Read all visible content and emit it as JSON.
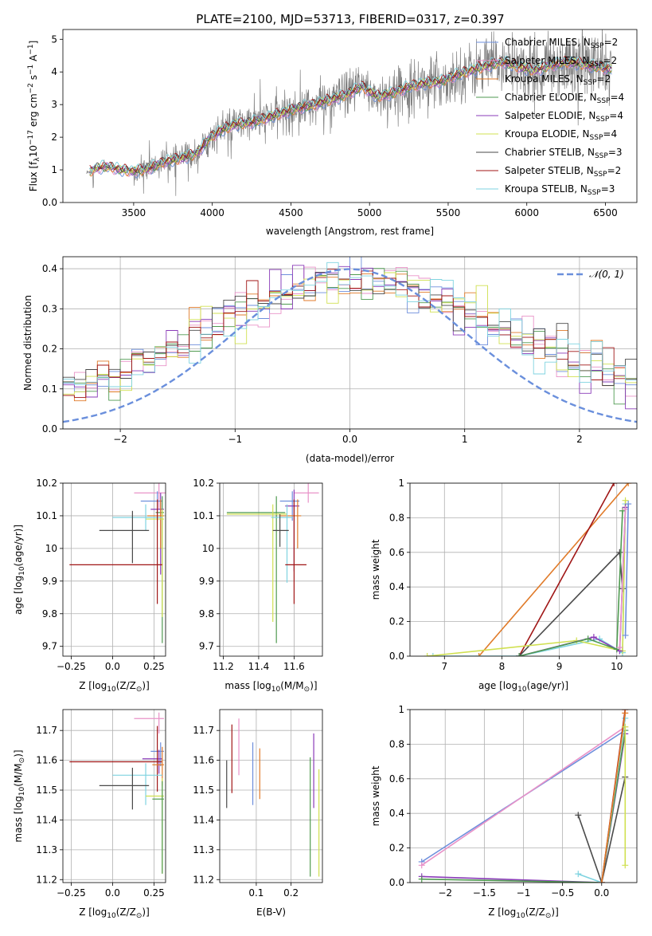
{
  "figure": {
    "title": "PLATE=2100, MJD=53713, FIBERID=0317, z=0.397"
  },
  "chart_data": [
    {
      "id": "spectrum",
      "type": "line",
      "xlabel": "wavelength [Angstrom, rest frame]",
      "ylabel_parts": [
        "Flux [f",
        "λ",
        "10",
        "−17",
        " erg cm",
        "−2",
        " s",
        "−1",
        " A",
        "−1",
        "]"
      ],
      "xlim": [
        3050,
        6700
      ],
      "ylim": [
        0,
        5.3
      ],
      "xticks": [
        3500,
        4000,
        4500,
        5000,
        5500,
        6000,
        6500
      ],
      "yticks": [
        0,
        1,
        2,
        3,
        4,
        5
      ],
      "grid": false,
      "legend_position": "right",
      "continuum_knots": {
        "x": [
          3200,
          3260,
          3330,
          3420,
          3500,
          3600,
          3700,
          3800,
          3900,
          3980,
          4050,
          4150,
          4250,
          4350,
          4450,
          4550,
          4650,
          4750,
          4850,
          4950,
          5050,
          5150,
          5250,
          5350,
          5450,
          5550,
          5650,
          5750,
          5850,
          5950,
          6050,
          6150,
          6250,
          6350,
          6450,
          6530
        ],
        "y": [
          0.9,
          1.05,
          1.1,
          1.0,
          0.95,
          1.05,
          1.25,
          1.35,
          1.5,
          1.95,
          2.2,
          2.4,
          2.45,
          2.6,
          2.75,
          2.9,
          3.0,
          3.15,
          3.3,
          3.55,
          3.25,
          3.35,
          3.55,
          3.65,
          3.7,
          3.9,
          4.05,
          4.2,
          4.3,
          4.15,
          4.05,
          4.2,
          4.3,
          4.25,
          4.15,
          4.1
        ]
      },
      "series": [
        {
          "name": "Chabrier MILES, N",
          "sub": "SSP",
          "suffix": "=2",
          "color": "#6e8fdc"
        },
        {
          "name": "Salpeter MILES, N",
          "sub": "SSP",
          "suffix": "=2",
          "color": "#e992c8"
        },
        {
          "name": "Kroupa MILES, N",
          "sub": "SSP",
          "suffix": "=2",
          "color": "#e07a28"
        },
        {
          "name": "Chabrier ELODIE, N",
          "sub": "SSP",
          "suffix": "=4",
          "color": "#4f9a50"
        },
        {
          "name": "Salpeter ELODIE, N",
          "sub": "SSP",
          "suffix": "=4",
          "color": "#8a3bb8"
        },
        {
          "name": "Kroupa ELODIE, N",
          "sub": "SSP",
          "suffix": "=4",
          "color": "#d0e050"
        },
        {
          "name": "Chabrier STELIB, N",
          "sub": "SSP",
          "suffix": "=3",
          "color": "#4a4a4a"
        },
        {
          "name": "Salpeter STELIB, N",
          "sub": "SSP",
          "suffix": "=2",
          "color": "#a01616"
        },
        {
          "name": "Kroupa STELIB, N",
          "sub": "SSP",
          "suffix": "=3",
          "color": "#7fd3e0"
        }
      ]
    },
    {
      "id": "residuals",
      "type": "histogram",
      "xlabel": "(data-model)/error",
      "ylabel": "Normed distribution",
      "xlim": [
        -2.5,
        2.5
      ],
      "ylim": [
        0,
        0.43
      ],
      "xticks": [
        -2,
        -1,
        0,
        1,
        2
      ],
      "yticks": [
        0.0,
        0.1,
        0.2,
        0.3,
        0.4
      ],
      "grid": true,
      "bins": 50,
      "legend_position": "top-right",
      "reference": {
        "label": "𝒩(0, 1)",
        "mean": 0,
        "sigma": 1,
        "color": "#6a8fdc"
      }
    },
    {
      "id": "age-vs-Z",
      "type": "scatter",
      "xlabel_parts": [
        "Z [log",
        "10",
        "(Z/Z",
        "⊙",
        ")]"
      ],
      "ylabel_parts": [
        "age  [log",
        "10",
        "(age/yr)]"
      ],
      "xlim": [
        -0.3,
        0.32
      ],
      "ylim": [
        9.67,
        10.2
      ],
      "xticks": [
        -0.25,
        0.0,
        0.25
      ],
      "yticks": [
        9.7,
        9.8,
        9.9,
        10.0,
        10.1,
        10.2
      ],
      "grid": true,
      "points": [
        {
          "x": 0.28,
          "xerr": [
            0.15,
            0.04
          ],
          "y": 10.17,
          "yerr": [
            0.05,
            0.03
          ],
          "color": "#e992c8"
        },
        {
          "x": 0.27,
          "xerr": [
            0.1,
            0.03
          ],
          "y": 10.145,
          "yerr": [
            0.06,
            0.03
          ],
          "color": "#6e8fdc"
        },
        {
          "x": 0.29,
          "xerr": [
            0.06,
            0.02
          ],
          "y": 10.12,
          "yerr": [
            0.2,
            0.05
          ],
          "color": "#8a3bb8"
        },
        {
          "x": 0.3,
          "xerr": [
            0.04,
            0.01
          ],
          "y": 10.11,
          "yerr": [
            0.4,
            0.05
          ],
          "color": "#4f9a50"
        },
        {
          "x": 0.29,
          "xerr": [
            0.08,
            0.02
          ],
          "y": 10.1,
          "yerr": [
            0.1,
            0.05
          ],
          "color": "#e07a28"
        },
        {
          "x": 0.3,
          "xerr": [
            0.1,
            0.01
          ],
          "y": 10.09,
          "yerr": [
            0.3,
            0.03
          ],
          "color": "#d0e050"
        },
        {
          "x": 0.2,
          "xerr": [
            0.2,
            0.1
          ],
          "y": 10.095,
          "yerr": [
            0.04,
            0.04
          ],
          "color": "#7fd3e0"
        },
        {
          "x": 0.12,
          "xerr": [
            0.2,
            0.1
          ],
          "y": 10.055,
          "yerr": [
            0.1,
            0.06
          ],
          "color": "#4a4a4a"
        },
        {
          "x": 0.27,
          "xerr": [
            0.53,
            0.03
          ],
          "y": 9.95,
          "yerr": [
            0.12,
            0.2
          ],
          "color": "#a01616"
        }
      ]
    },
    {
      "id": "age-vs-mass",
      "type": "scatter",
      "xlabel_parts": [
        "mass [log",
        "10",
        "(M/M",
        "⊙",
        ")]"
      ],
      "ylabel": "",
      "xlim": [
        11.18,
        11.76
      ],
      "ylim": [
        9.67,
        10.2
      ],
      "xticks": [
        11.2,
        11.4,
        11.6
      ],
      "yticks": [
        9.7,
        9.8,
        9.9,
        10.0,
        10.1,
        10.2
      ],
      "grid": true,
      "points": [
        {
          "x": 11.68,
          "xerr": [
            0.08,
            0.06
          ],
          "y": 10.17,
          "yerr": [
            0.03,
            0.1
          ],
          "color": "#e992c8"
        },
        {
          "x": 11.59,
          "xerr": [
            0.07,
            0.04
          ],
          "y": 10.145,
          "yerr": [
            0.06,
            0.03
          ],
          "color": "#6e8fdc"
        },
        {
          "x": 11.6,
          "xerr": [
            0.05,
            0.03
          ],
          "y": 10.13,
          "yerr": [
            0.2,
            0.05
          ],
          "color": "#8a3bb8"
        },
        {
          "x": 11.5,
          "xerr": [
            0.28,
            0.05
          ],
          "y": 10.11,
          "yerr": [
            0.4,
            0.05
          ],
          "color": "#4f9a50"
        },
        {
          "x": 11.62,
          "xerr": [
            0.1,
            0.02
          ],
          "y": 10.1,
          "yerr": [
            0.1,
            0.05
          ],
          "color": "#e07a28"
        },
        {
          "x": 11.48,
          "xerr": [
            0.26,
            0.08
          ],
          "y": 10.105,
          "yerr": [
            0.33,
            0.03
          ],
          "color": "#d0e050"
        },
        {
          "x": 11.56,
          "xerr": [
            0.09,
            0.03
          ],
          "y": 10.095,
          "yerr": [
            0.2,
            0.04
          ],
          "color": "#7fd3e0"
        },
        {
          "x": 11.52,
          "xerr": [
            0.04,
            0.05
          ],
          "y": 10.055,
          "yerr": [
            0.05,
            0.05
          ],
          "color": "#4a4a4a"
        },
        {
          "x": 11.6,
          "xerr": [
            0.05,
            0.07
          ],
          "y": 9.95,
          "yerr": [
            0.12,
            0.2
          ],
          "color": "#a01616"
        }
      ]
    },
    {
      "id": "weight-vs-age",
      "type": "line",
      "xlabel_parts": [
        "age  [log",
        "10",
        "(age/yr)]"
      ],
      "ylabel": "mass weight",
      "xlim": [
        6.4,
        10.35
      ],
      "ylim": [
        0,
        1
      ],
      "xticks": [
        7,
        8,
        9,
        10
      ],
      "yticks": [
        0.0,
        0.2,
        0.4,
        0.6,
        0.8,
        1.0
      ],
      "grid": true,
      "series": [
        {
          "color": "#e07a28",
          "x": [
            7.6,
            10.2
          ],
          "y": [
            0.0,
            1.0
          ]
        },
        {
          "color": "#a01616",
          "x": [
            8.3,
            9.95
          ],
          "y": [
            0.0,
            1.0
          ]
        },
        {
          "color": "#4a4a4a",
          "x": [
            8.3,
            10.05,
            10.1
          ],
          "y": [
            0.0,
            0.6,
            0.39
          ]
        },
        {
          "color": "#7fd3e0",
          "x": [
            6.8,
            8.3,
            9.7,
            10.1,
            10.15
          ],
          "y": [
            0.0,
            0.0,
            0.1,
            0.02,
            0.88
          ]
        },
        {
          "color": "#d0e050",
          "x": [
            6.7,
            9.3,
            10.1,
            10.15
          ],
          "y": [
            0.0,
            0.09,
            0.03,
            0.9
          ]
        },
        {
          "color": "#8a3bb8",
          "x": [
            8.3,
            9.6,
            10.05,
            10.15
          ],
          "y": [
            0.0,
            0.11,
            0.03,
            0.86
          ]
        },
        {
          "color": "#4f9a50",
          "x": [
            8.3,
            9.5,
            10.0,
            10.1
          ],
          "y": [
            0.0,
            0.1,
            0.04,
            0.84
          ]
        },
        {
          "color": "#e992c8",
          "x": [
            10.05,
            10.15
          ],
          "y": [
            0.05,
            0.85
          ]
        },
        {
          "color": "#6e8fdc",
          "x": [
            10.15,
            10.2
          ],
          "y": [
            0.12,
            0.88
          ]
        }
      ]
    },
    {
      "id": "mass-vs-Z",
      "type": "scatter",
      "xlabel_parts": [
        "Z [log",
        "10",
        "(Z/Z",
        "⊙",
        ")]"
      ],
      "ylabel_parts": [
        "mass [log",
        "10",
        "(M/M",
        "⊙",
        ")]"
      ],
      "xlim": [
        -0.3,
        0.32
      ],
      "ylim": [
        11.19,
        11.77
      ],
      "xticks": [
        -0.25,
        0.0,
        0.25
      ],
      "yticks": [
        11.2,
        11.3,
        11.4,
        11.5,
        11.6,
        11.7
      ],
      "grid": true,
      "points": [
        {
          "x": 0.28,
          "xerr": [
            0.15,
            0.03
          ],
          "y": 11.74,
          "yerr": [
            0.05,
            0.02
          ],
          "color": "#e992c8"
        },
        {
          "x": 0.29,
          "xerr": [
            0.06,
            0.02
          ],
          "y": 11.63,
          "yerr": [
            0.05,
            0.03
          ],
          "color": "#6e8fdc"
        },
        {
          "x": 0.28,
          "xerr": [
            0.1,
            0.02
          ],
          "y": 11.605,
          "yerr": [
            0.05,
            0.03
          ],
          "color": "#8a3bb8"
        },
        {
          "x": 0.27,
          "xerr": [
            0.53,
            0.03
          ],
          "y": 11.595,
          "yerr": [
            0.1,
            0.12
          ],
          "color": "#a01616"
        },
        {
          "x": 0.3,
          "xerr": [
            0.06,
            0.01
          ],
          "y": 11.585,
          "yerr": [
            0.07,
            0.06
          ],
          "color": "#e07a28"
        },
        {
          "x": 0.2,
          "xerr": [
            0.2,
            0.1
          ],
          "y": 11.55,
          "yerr": [
            0.1,
            0.04
          ],
          "color": "#7fd3e0"
        },
        {
          "x": 0.12,
          "xerr": [
            0.2,
            0.1
          ],
          "y": 11.515,
          "yerr": [
            0.08,
            0.06
          ],
          "color": "#4a4a4a"
        },
        {
          "x": 0.3,
          "xerr": [
            0.1,
            0.01
          ],
          "y": 11.48,
          "yerr": [
            0.26,
            0.06
          ],
          "color": "#d0e050"
        },
        {
          "x": 0.3,
          "xerr": [
            0.06,
            0.01
          ],
          "y": 11.47,
          "yerr": [
            0.25,
            0.06
          ],
          "color": "#4f9a50"
        }
      ]
    },
    {
      "id": "mass-vs-ebv",
      "type": "errorbar",
      "xlabel": "E(B-V)",
      "ylabel": "",
      "xlim": [
        -0.005,
        0.29
      ],
      "ylim": [
        11.19,
        11.77
      ],
      "xticks": [
        0.1,
        0.2
      ],
      "yticks": [
        11.2,
        11.3,
        11.4,
        11.5,
        11.6,
        11.7
      ],
      "grid": true,
      "points": [
        {
          "x": 0.015,
          "y": 11.52,
          "yerr": [
            0.08,
            0.08
          ],
          "color": "#4a4a4a"
        },
        {
          "x": 0.03,
          "y": 11.6,
          "yerr": [
            0.11,
            0.12
          ],
          "color": "#a01616"
        },
        {
          "x": 0.05,
          "y": 11.64,
          "yerr": [
            0.09,
            0.1
          ],
          "color": "#e992c8"
        },
        {
          "x": 0.09,
          "y": 11.56,
          "yerr": [
            0.11,
            0.1
          ],
          "color": "#6e8fdc"
        },
        {
          "x": 0.11,
          "y": 11.55,
          "yerr": [
            0.08,
            0.09
          ],
          "color": "#e07a28"
        },
        {
          "x": 0.255,
          "y": 11.41,
          "yerr": [
            0.2,
            0.2
          ],
          "color": "#4f9a50"
        },
        {
          "x": 0.265,
          "y": 11.56,
          "yerr": [
            0.12,
            0.13
          ],
          "color": "#8a3bb8"
        },
        {
          "x": 0.28,
          "y": 11.39,
          "yerr": [
            0.18,
            0.18
          ],
          "color": "#d0e050"
        }
      ]
    },
    {
      "id": "weight-vs-Z",
      "type": "line",
      "xlabel_parts": [
        "Z [log",
        "10",
        "(Z/Z",
        "⊙",
        ")]"
      ],
      "ylabel": "mass weight",
      "xlim": [
        -2.45,
        0.45
      ],
      "ylim": [
        0,
        1
      ],
      "xticks": [
        -2.0,
        -1.5,
        -1.0,
        -0.5,
        0.0
      ],
      "yticks": [
        0.0,
        0.2,
        0.4,
        0.6,
        0.8,
        1.0
      ],
      "grid": true,
      "series": [
        {
          "color": "#6e8fdc",
          "x": [
            -2.3,
            0.3
          ],
          "y": [
            0.12,
            0.88
          ]
        },
        {
          "color": "#e992c8",
          "x": [
            -2.3,
            0.3
          ],
          "y": [
            0.1,
            0.9
          ]
        },
        {
          "color": "#8a3bb8",
          "x": [
            -2.3,
            0.0,
            0.3
          ],
          "y": [
            0.035,
            0.0,
            0.86
          ]
        },
        {
          "color": "#4f9a50",
          "x": [
            -2.3,
            0.0,
            0.3
          ],
          "y": [
            0.02,
            0.0,
            0.88
          ]
        },
        {
          "color": "#4a4a4a",
          "x": [
            -0.3,
            0.0,
            0.3
          ],
          "y": [
            0.39,
            0.0,
            0.61
          ]
        },
        {
          "color": "#7fd3e0",
          "x": [
            -0.3,
            0.0,
            0.3
          ],
          "y": [
            0.05,
            0.0,
            0.95
          ]
        },
        {
          "color": "#a01616",
          "x": [
            0.0,
            0.3
          ],
          "y": [
            0.0,
            1.0
          ]
        },
        {
          "color": "#e07a28",
          "x": [
            0.0,
            0.3
          ],
          "y": [
            0.0,
            0.98
          ]
        },
        {
          "color": "#d0e050",
          "x": [
            0.3,
            0.3
          ],
          "y": [
            0.1,
            0.9
          ]
        }
      ]
    }
  ]
}
